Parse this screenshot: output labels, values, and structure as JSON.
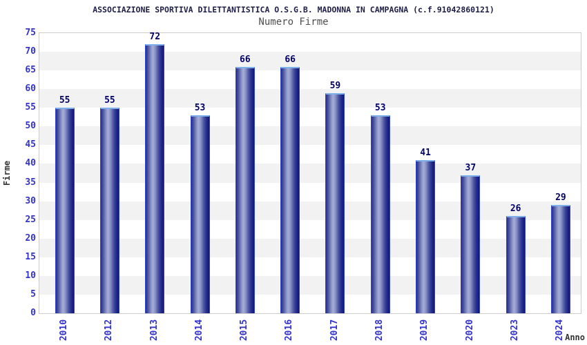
{
  "chart_data": {
    "type": "bar",
    "title": "ASSOCIAZIONE SPORTIVA DILETTANTISTICA O.S.G.B. MADONNA IN CAMPAGNA (c.f.91042860121)",
    "subtitle": "Numero Firme",
    "categories": [
      "2010",
      "2012",
      "2013",
      "2014",
      "2015",
      "2016",
      "2017",
      "2018",
      "2019",
      "2020",
      "2023",
      "2024"
    ],
    "values": [
      55,
      55,
      72,
      53,
      66,
      66,
      59,
      53,
      41,
      37,
      26,
      29
    ],
    "xlabel": "Anno",
    "ylabel": "Firme",
    "ylim": [
      0,
      75
    ],
    "ytick_step": 5,
    "legend": "none",
    "grid": "horizontal-bands-alternating",
    "colors": {
      "bar_dark": "#272f91",
      "bar_light": "#a6aed8",
      "bar_edge_side": "#3347c4",
      "bar_edge_top": "#7db0ea",
      "tick_label": "#3333cc",
      "value_label": "#000066",
      "title": "#1e1e46",
      "subtitle": "#4d4d4d",
      "axis_label": "#333333",
      "band_gray": "#f2f2f2",
      "plot_border": "#cccccc",
      "background": "#ffffff"
    }
  }
}
